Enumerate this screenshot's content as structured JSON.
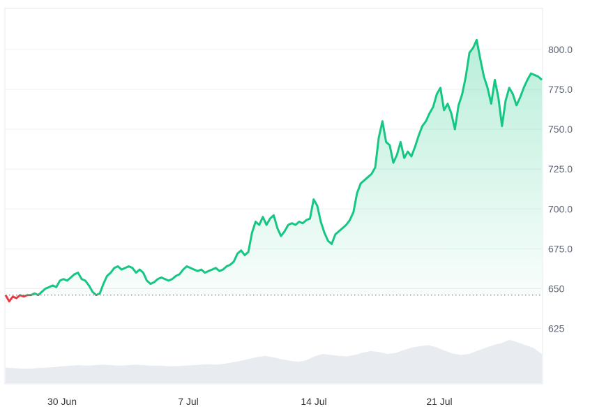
{
  "chart_data": {
    "type": "area",
    "title": "",
    "xlabel": "",
    "ylabel": "",
    "x_ticks": [
      "30 Jun",
      "7 Jul",
      "14 Jul",
      "21 Jul"
    ],
    "y_ticks": [
      "625",
      "650",
      "675.0",
      "700.0",
      "725.0",
      "750.0",
      "775.0",
      "800.0"
    ],
    "ylim": [
      600,
      820
    ],
    "baseline": 646,
    "grid": true,
    "colors": {
      "up": "#16c784",
      "down": "#ea3943",
      "volume": "#e8ebef"
    },
    "series": [
      {
        "values": [
          646,
          642,
          645,
          644,
          646,
          645,
          646,
          646,
          647,
          646,
          648,
          650,
          651,
          652,
          651,
          655,
          656,
          655,
          657,
          659,
          660,
          656,
          655,
          652,
          648,
          646,
          647,
          653,
          658,
          660,
          663,
          664,
          662,
          663,
          664,
          663,
          660,
          662,
          660,
          655,
          653,
          654,
          656,
          657,
          656,
          655,
          656,
          658,
          659,
          662,
          664,
          663,
          662,
          661,
          662,
          660,
          661,
          662,
          663,
          661,
          662,
          664,
          665,
          667,
          672,
          674,
          671,
          673,
          685,
          692,
          690,
          695,
          690,
          694,
          696,
          688,
          683,
          686,
          690,
          691,
          690,
          692,
          691,
          693,
          694,
          706,
          702,
          692,
          685,
          680,
          678,
          684,
          686,
          688,
          690,
          693,
          698,
          710,
          716,
          718,
          720,
          722,
          726,
          745,
          755,
          742,
          740,
          729,
          734,
          742,
          732,
          736,
          733,
          739,
          746,
          752,
          755,
          760,
          764,
          772,
          776,
          762,
          766,
          760,
          750,
          765,
          772,
          783,
          798,
          801,
          806,
          794,
          783,
          776,
          766,
          781,
          770,
          752,
          768,
          776,
          772,
          765,
          770,
          776,
          781,
          785,
          784,
          783,
          781
        ]
      }
    ],
    "volume": [
      0.32,
      0.31,
      0.3,
      0.3,
      0.31,
      0.32,
      0.33,
      0.35,
      0.36,
      0.37,
      0.36,
      0.37,
      0.38,
      0.37,
      0.36,
      0.37,
      0.38,
      0.37,
      0.36,
      0.36,
      0.35,
      0.35,
      0.36,
      0.37,
      0.38,
      0.39,
      0.38,
      0.4,
      0.43,
      0.46,
      0.5,
      0.54,
      0.56,
      0.53,
      0.49,
      0.46,
      0.44,
      0.47,
      0.55,
      0.6,
      0.58,
      0.56,
      0.55,
      0.58,
      0.63,
      0.66,
      0.64,
      0.6,
      0.62,
      0.68,
      0.73,
      0.76,
      0.78,
      0.74,
      0.67,
      0.61,
      0.58,
      0.6,
      0.66,
      0.72,
      0.78,
      0.82,
      0.89,
      0.84,
      0.78,
      0.72,
      0.6
    ]
  }
}
